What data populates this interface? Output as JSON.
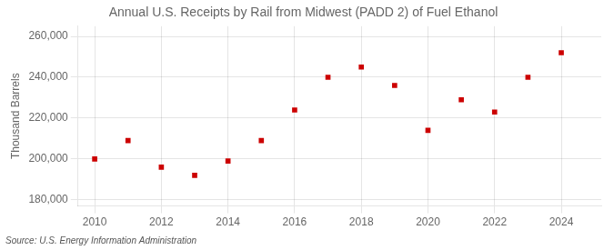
{
  "chart_data": {
    "type": "scatter",
    "title": "Annual U.S. Receipts by Rail from Midwest (PADD 2) of Fuel Ethanol",
    "ylabel": "Thousand Barrels",
    "annotation": "Source: U.S. Energy Information Administration",
    "x": [
      2010,
      2011,
      2012,
      2013,
      2014,
      2015,
      2016,
      2017,
      2018,
      2019,
      2020,
      2021,
      2022,
      2023,
      2024
    ],
    "values": [
      200000,
      209000,
      196000,
      192000,
      199000,
      209000,
      224000,
      240000,
      245000,
      236000,
      214000,
      229000,
      223000,
      240000,
      252000
    ],
    "color": "#cc0000",
    "marker": "square",
    "xlim": [
      2009.5,
      2025.2
    ],
    "xticks": [
      2010,
      2012,
      2014,
      2016,
      2018,
      2020,
      2022,
      2024
    ],
    "ylim": [
      177000,
      265000
    ],
    "yticks": [
      {
        "value": 180000,
        "label": "180,000"
      },
      {
        "value": 200000,
        "label": "200,000"
      },
      {
        "value": 220000,
        "label": "220,000"
      },
      {
        "value": 240000,
        "label": "240,000"
      },
      {
        "value": 260000,
        "label": "260,000"
      }
    ],
    "grid": true
  }
}
